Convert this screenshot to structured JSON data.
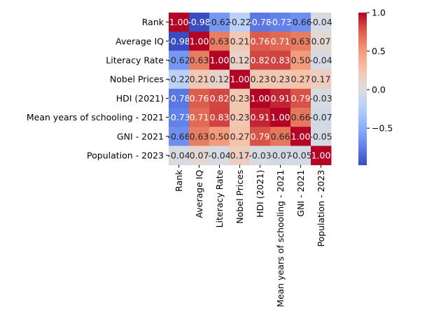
{
  "chart_data": {
    "type": "heatmap",
    "title": "",
    "xlabel": "",
    "ylabel": "",
    "labels": [
      "Rank",
      "Average IQ",
      "Literacy Rate",
      "Nobel Prices",
      "HDI (2021)",
      "Mean years of schooling - 2021",
      "GNI - 2021",
      "Population - 2023"
    ],
    "matrix": [
      [
        1.0,
        -0.98,
        -0.62,
        -0.22,
        -0.78,
        -0.73,
        -0.66,
        -0.04
      ],
      [
        -0.98,
        1.0,
        0.63,
        0.21,
        0.76,
        0.71,
        0.63,
        0.07
      ],
      [
        -0.62,
        0.63,
        1.0,
        0.12,
        0.82,
        0.83,
        0.5,
        -0.04
      ],
      [
        -0.22,
        0.21,
        0.12,
        1.0,
        0.23,
        0.23,
        0.27,
        0.17
      ],
      [
        -0.78,
        0.76,
        0.82,
        0.23,
        1.0,
        0.91,
        0.79,
        -0.03
      ],
      [
        -0.73,
        0.71,
        0.83,
        0.23,
        0.91,
        1.0,
        0.66,
        -0.07
      ],
      [
        -0.66,
        0.63,
        0.5,
        0.27,
        0.79,
        0.66,
        1.0,
        -0.05
      ],
      [
        -0.04,
        0.07,
        -0.04,
        0.17,
        -0.03,
        -0.07,
        -0.05,
        1.0
      ]
    ],
    "value_format": "2 decimals",
    "colormap": "coolwarm",
    "vmin": -0.98,
    "vmax": 1.0,
    "colorbar": {
      "ticks": [
        -0.5,
        0.0,
        0.5,
        1.0
      ],
      "tick_labels": [
        "−0.5",
        "0.0",
        "0.5",
        "1.0"
      ]
    }
  }
}
